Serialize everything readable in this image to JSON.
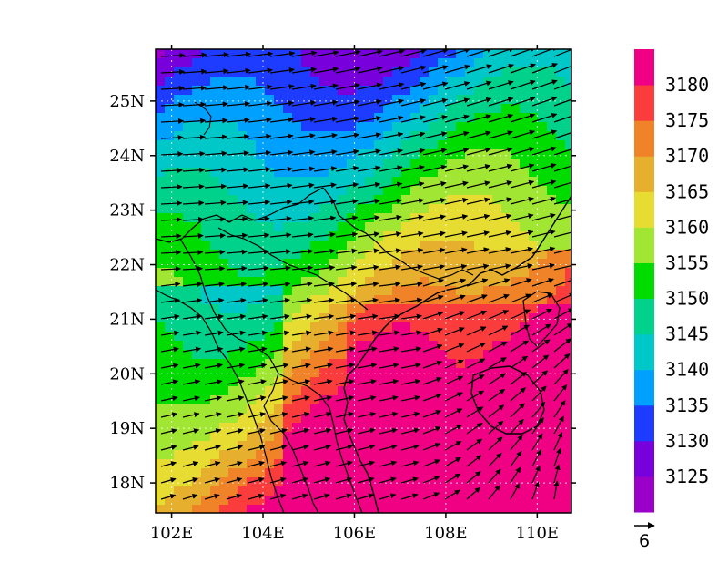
{
  "map": {
    "type": "contour-fill-with-wind-vectors",
    "x_axis": {
      "ticks": [
        "102E",
        "104E",
        "106E",
        "108E",
        "110E"
      ],
      "values": [
        102,
        104,
        106,
        108,
        110
      ],
      "range": [
        101.65,
        110.75
      ]
    },
    "y_axis": {
      "ticks": [
        "18N",
        "19N",
        "20N",
        "21N",
        "22N",
        "23N",
        "24N",
        "25N"
      ],
      "values": [
        18,
        19,
        20,
        21,
        22,
        23,
        24,
        25
      ],
      "range": [
        17.45,
        25.95
      ]
    },
    "grid": true,
    "colorbar": {
      "labels": [
        "3125",
        "3130",
        "3135",
        "3140",
        "3145",
        "3150",
        "3155",
        "3160",
        "3165",
        "3170",
        "3175",
        "3180"
      ],
      "colors": [
        "#9b00c8",
        "#7800dc",
        "#1e3cff",
        "#00a0ff",
        "#00c8c8",
        "#00d28c",
        "#00dc00",
        "#a0e632",
        "#e6dc32",
        "#e6af2d",
        "#f08228",
        "#fa3c3c",
        "#f00082"
      ]
    },
    "reference_vector": {
      "label": "6"
    }
  }
}
